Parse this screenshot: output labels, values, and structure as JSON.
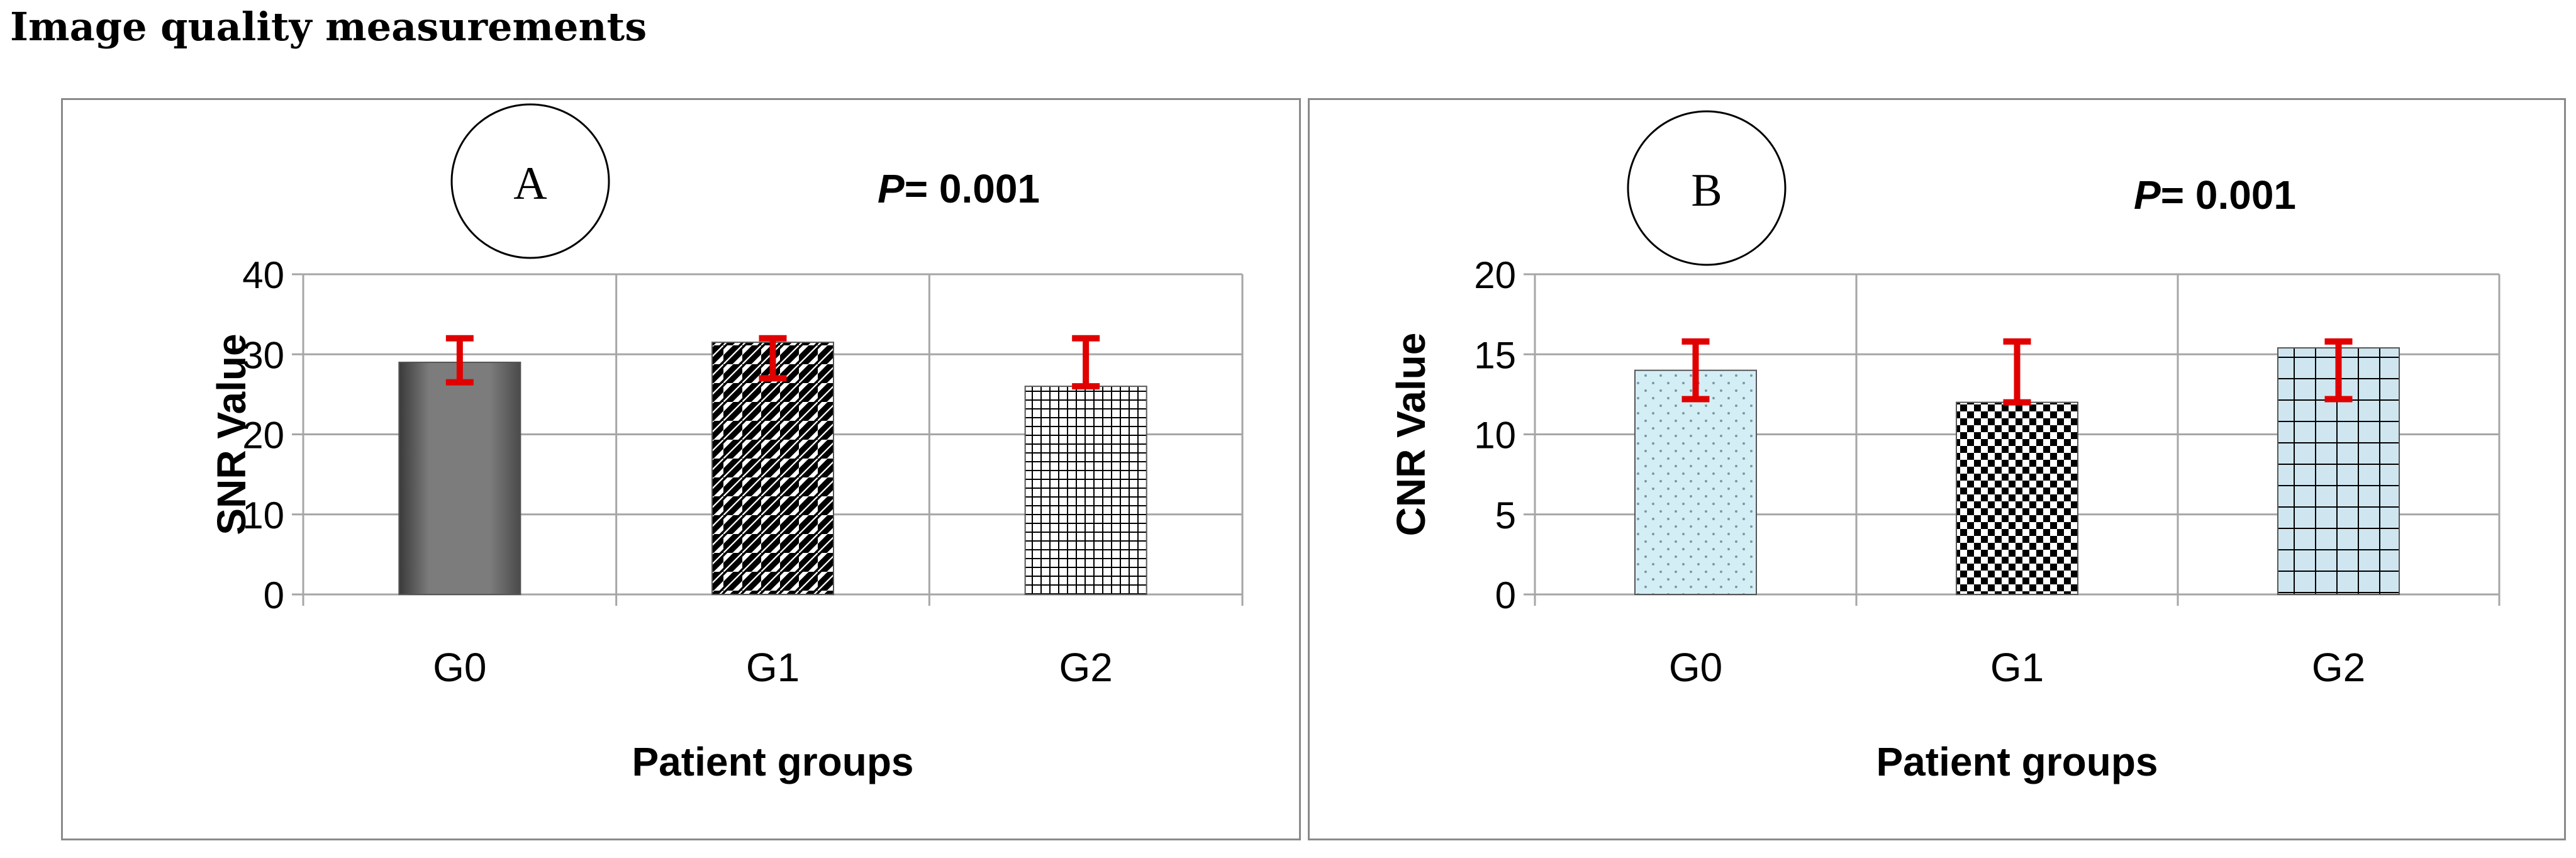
{
  "page": {
    "title": "Image quality measurements"
  },
  "chart_data": [
    {
      "type": "bar",
      "panel_label": "A",
      "annotation": {
        "prefix": "P",
        "text": "= 0.001"
      },
      "xlabel": "Patient groups",
      "ylabel": "SNR Value",
      "ylim": [
        0,
        40
      ],
      "yticks": [
        0,
        10,
        20,
        30,
        40
      ],
      "grid": true,
      "categories": [
        "G0",
        "G1",
        "G2"
      ],
      "values": [
        29,
        31.5,
        26
      ],
      "error_low": [
        26.5,
        27,
        26
      ],
      "error_high": [
        32,
        32,
        32
      ],
      "bar_patterns": [
        "gradient-gray",
        "diagonal-stripes",
        "fine-grid"
      ],
      "error_color": "#e00000"
    },
    {
      "type": "bar",
      "panel_label": "B",
      "annotation": {
        "prefix": "P",
        "text": "= 0.001"
      },
      "xlabel": "Patient groups",
      "ylabel": "CNR Value",
      "ylim": [
        0,
        20
      ],
      "yticks": [
        0,
        5,
        10,
        15,
        20
      ],
      "grid": true,
      "categories": [
        "G0",
        "G1",
        "G2"
      ],
      "values": [
        14,
        12,
        15.4
      ],
      "error_low": [
        12.2,
        12,
        12.2
      ],
      "error_high": [
        15.8,
        15.8,
        15.8
      ],
      "bar_patterns": [
        "light-dots",
        "checker",
        "cross-grid"
      ],
      "error_color": "#e00000"
    }
  ]
}
